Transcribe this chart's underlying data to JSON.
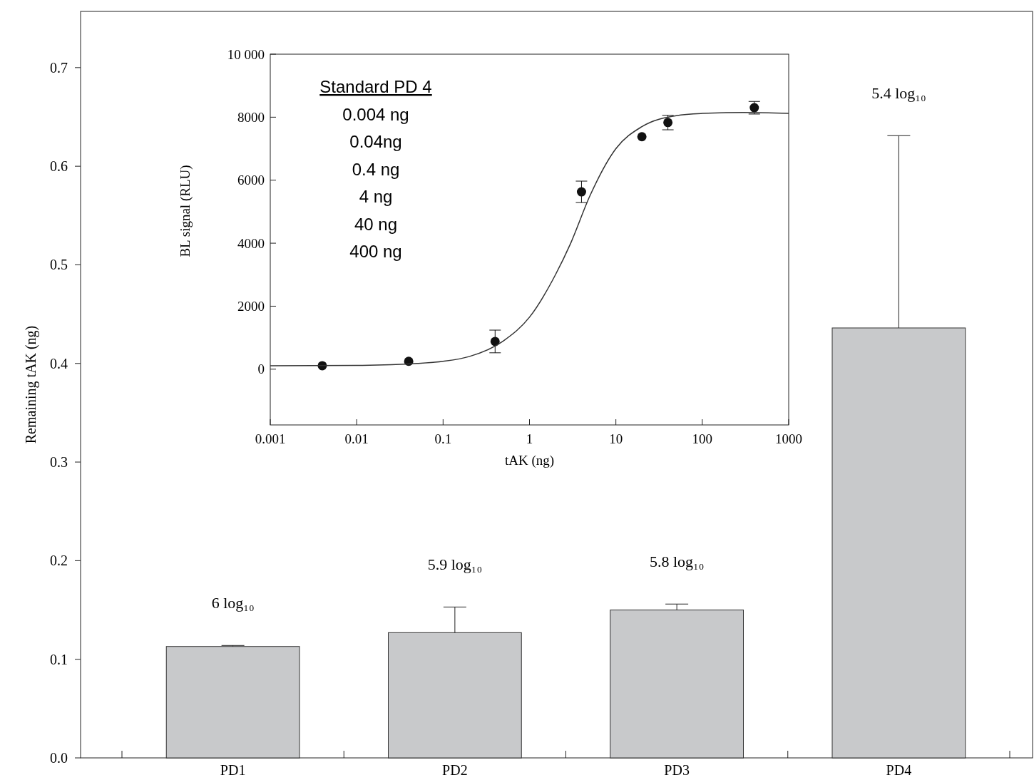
{
  "chart_data": [
    {
      "type": "bar",
      "ylabel": "Remaining tAK (ng)",
      "categories": [
        "PD1",
        "PD2",
        "PD3",
        "PD4"
      ],
      "values": [
        0.113,
        0.127,
        0.15,
        0.436
      ],
      "errors": [
        [
          0.113,
          0.114
        ],
        [
          0.127,
          0.153
        ],
        [
          0.15,
          0.156
        ],
        [
          0.436,
          0.631
        ]
      ],
      "color": "#c8c9cb",
      "ylim": [
        0,
        0.757
      ],
      "yticks": [
        {
          "value": 0,
          "label": "0.0"
        },
        0.1,
        0.2,
        0.3,
        0.4,
        0.5,
        0.6,
        0.7
      ],
      "annotations": [
        "6 log₁₀",
        "5.9 log₁₀",
        "5.8 log₁₀",
        "5.4 log₁₀"
      ]
    },
    {
      "type": "scatter",
      "xlabel": "tAK (ng)",
      "ylabel": "BL signal (RLU)",
      "log": "x",
      "xlim": [
        0.001,
        1000
      ],
      "ylim": [
        -1770,
        10000
      ],
      "xticks": [
        0.001,
        0.01,
        0.1,
        1,
        10,
        100,
        1000
      ],
      "yticks": [
        0,
        2000,
        4000,
        6000,
        {
          "value": 8000,
          "label": "8000"
        },
        {
          "value": 10000,
          "label": "10 000"
        }
      ],
      "series": [
        {
          "type": "scatter",
          "marker": "circle",
          "color": "#111111",
          "x": [
            0.004,
            0.04,
            0.4,
            4,
            20,
            40,
            400
          ],
          "values": [
            110,
            250,
            880,
            5630,
            7380,
            7830,
            8300
          ],
          "errors": [
            null,
            null,
            360,
            340,
            null,
            230,
            200
          ]
        },
        {
          "type": "line",
          "color": "#333333",
          "line_style": "solid",
          "x": [
            0.001,
            0.01,
            0.05,
            0.1,
            0.2,
            0.5,
            1,
            2,
            3,
            5,
            10,
            20,
            50,
            100,
            300,
            1000
          ],
          "values": [
            110,
            120,
            180,
            250,
            400,
            900,
            1650,
            3000,
            4000,
            5500,
            7000,
            7700,
            8050,
            8120,
            8150,
            8120
          ]
        }
      ],
      "annotations": [
        "Standard PD 4",
        "0.004 ng",
        "0.04ng",
        "0.4 ng",
        "4 ng",
        "40 ng",
        "400 ng"
      ]
    }
  ]
}
